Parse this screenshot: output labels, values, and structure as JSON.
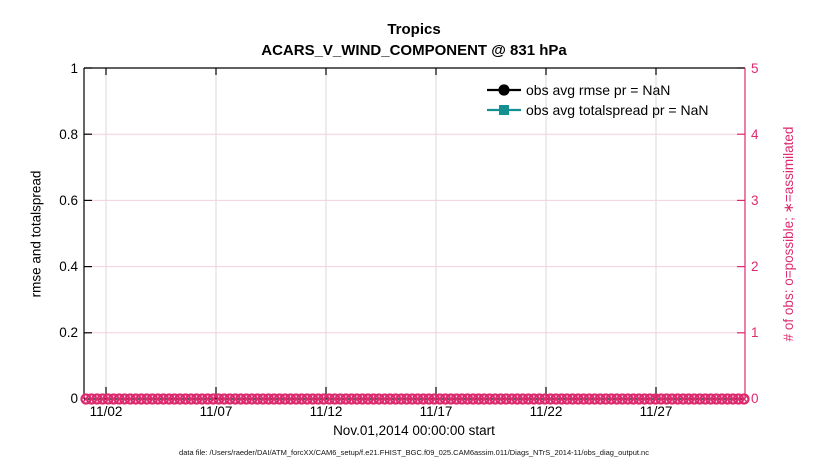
{
  "title": {
    "line1": "Tropics",
    "line2": "ACARS_V_WIND_COMPONENT @ 831 hPa"
  },
  "x_axis": {
    "label": "Nov.01,2014 00:00:00 start",
    "ticks": [
      "11/02",
      "11/07",
      "11/12",
      "11/17",
      "11/22",
      "11/27"
    ]
  },
  "y_axis_left": {
    "label": "rmse and totalspread",
    "ticks": [
      "0",
      "0.2",
      "0.4",
      "0.6",
      "0.8",
      "1"
    ],
    "color": "#000000"
  },
  "y_axis_right": {
    "label": "# of obs: o=possible; ∗=assimilated",
    "ticks": [
      "0",
      "1",
      "2",
      "3",
      "4",
      "5"
    ],
    "color": "#dc2a6e"
  },
  "legend": {
    "items": [
      {
        "label": "obs avg rmse pr = NaN",
        "color": "#000000",
        "marker": "filled-circle"
      },
      {
        "label": "obs avg totalspread pr = NaN",
        "color": "#149090",
        "marker": "filled-square"
      }
    ]
  },
  "footer": {
    "text": "data file: /Users/raeder/DAI/ATM_forcXX/CAM6_setup/f.e21.FHIST_BGC.f09_025.CAM6assim.011/Diags_NTrS_2014-11/obs_diag_output.nc"
  },
  "colors": {
    "accent_pink": "#dc2a6e",
    "teal": "#149090",
    "grid_vertical": "#d9d9d9",
    "grid_horizontal": "#f6cfdd"
  },
  "chart_data": {
    "type": "line",
    "title": "Tropics",
    "subtitle": "ACARS_V_WIND_COMPONENT @ 831 hPa",
    "xlabel": "Nov.01,2014 00:00:00 start",
    "ylabel_left": "rmse and totalspread",
    "ylabel_right": "# of obs: o=possible; ∗=assimilated",
    "x_range": [
      "2014-11-01 00:00",
      "2014-12-01 00:00"
    ],
    "x_ticks": [
      "11/02",
      "11/07",
      "11/12",
      "11/17",
      "11/22",
      "11/27"
    ],
    "ylim_left": [
      0,
      1
    ],
    "ylim_right": [
      0,
      5
    ],
    "grid": true,
    "legend_position": "top-right-inside",
    "series": [
      {
        "name": "obs avg rmse pr = NaN",
        "axis": "left",
        "color": "#000000",
        "marker": "circle",
        "values": "NaN - no curve plotted"
      },
      {
        "name": "obs avg totalspread pr = NaN",
        "axis": "left",
        "color": "#149090",
        "marker": "square",
        "values": "NaN - no curve plotted"
      },
      {
        "name": "# of obs possible (o)",
        "axis": "right",
        "color": "#dc2a6e",
        "marker": "open-circle",
        "constant_value": 0
      },
      {
        "name": "# of obs assimilated (∗)",
        "axis": "right",
        "color": "#dc2a6e",
        "marker": "x",
        "constant_value": 0
      }
    ],
    "obs_band": {
      "bins": 120,
      "value": 0
    }
  }
}
